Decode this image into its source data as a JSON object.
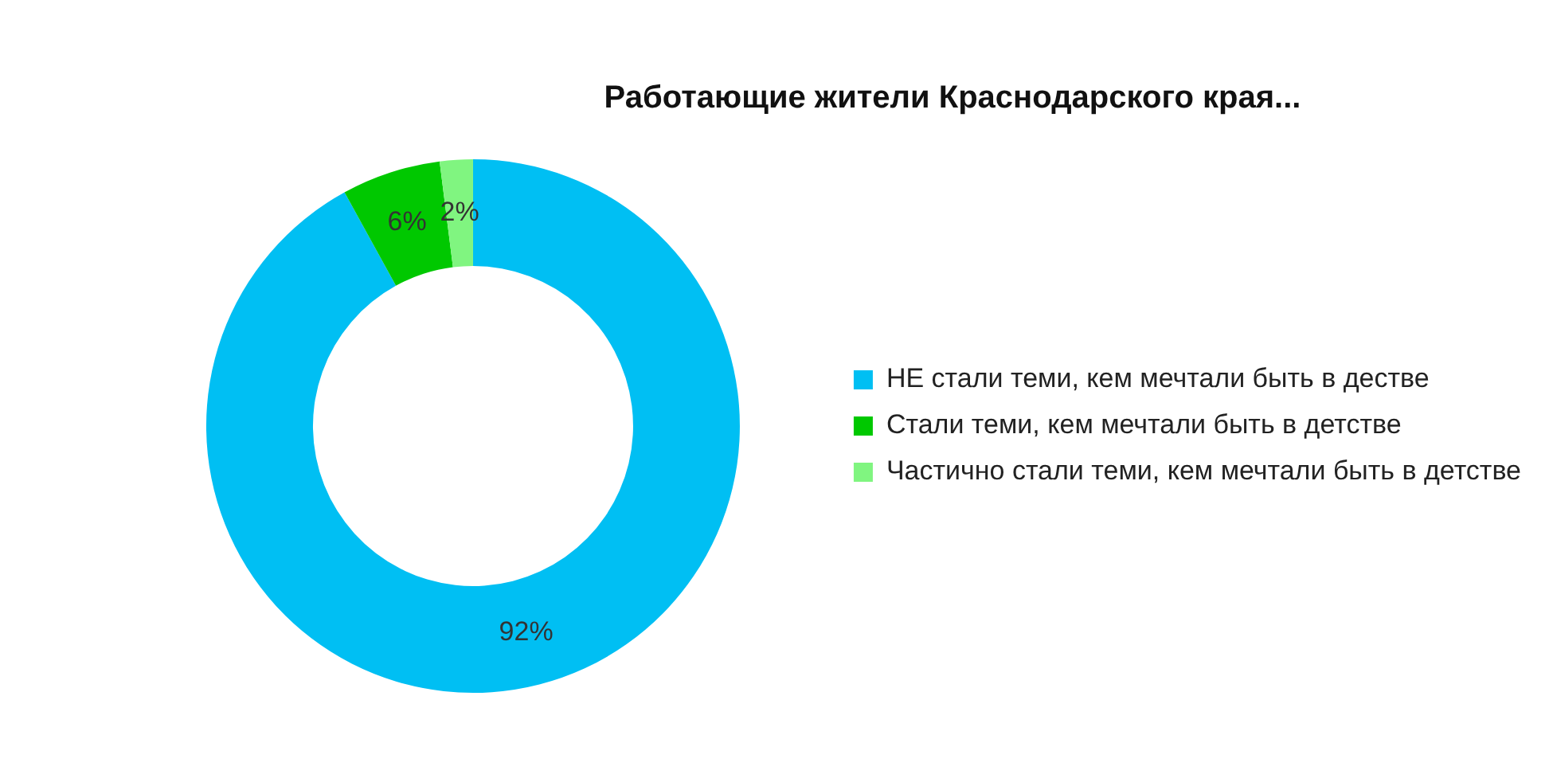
{
  "chart_data": {
    "type": "donut",
    "title": "Работающие жители Краснодарского края...",
    "categories": [
      "НЕ стали теми, кем мечтали быть в дестве",
      "Стали теми, кем мечтали быть в детстве",
      "Частично стали теми, кем мечтали быть в детстве"
    ],
    "values": [
      92,
      6,
      2
    ],
    "colors": [
      "#00bff3",
      "#00c800",
      "#80f580"
    ],
    "value_labels": [
      "92%",
      "6%",
      "2%"
    ],
    "legend": "right"
  }
}
